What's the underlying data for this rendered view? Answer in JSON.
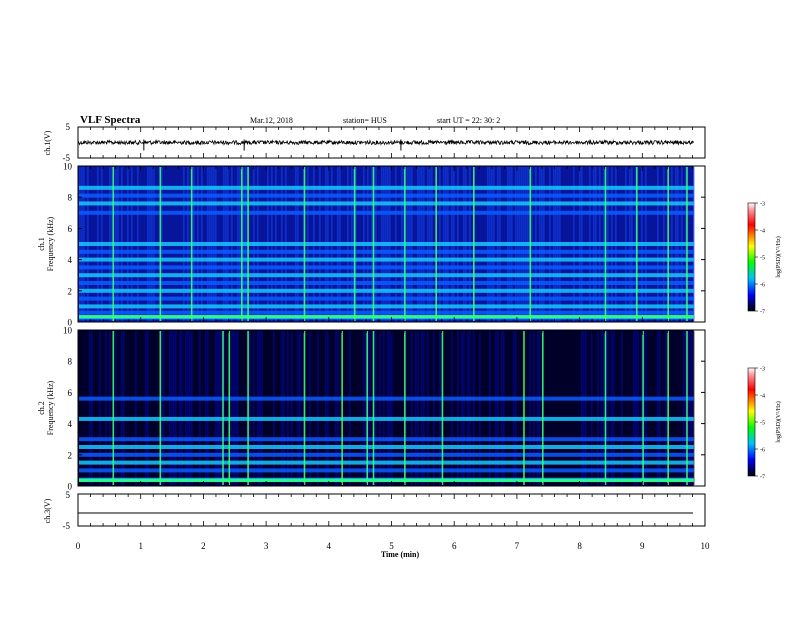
{
  "header": {
    "title": "VLF Spectra",
    "date": "Mar.12, 2018",
    "station": "station= HUS",
    "start": "start  UT =   22: 30: 2"
  },
  "colorbar": {
    "label": "log(PSD)(V²/Hz)",
    "ticks": [
      "-3",
      "-4",
      "-5",
      "-6",
      "-7"
    ],
    "colors": [
      "#ff0000",
      "#ffff00",
      "#00ff00",
      "#00c0ff",
      "#0000ff",
      "#000000"
    ]
  },
  "chart_data": [
    {
      "type": "line",
      "ylabel": "ch.1(V)",
      "ylim": [
        -5,
        5
      ],
      "yticks": [
        "5",
        "-5"
      ],
      "description_values": {
        "baseline": 0,
        "spike_times_min": [
          1.05,
          2.65,
          5.15
        ]
      }
    },
    {
      "type": "heatmap",
      "ylabel": "ch.1\nFrequency (kHz)",
      "ylabel_lines": [
        "ch.1",
        "Frequency (kHz)"
      ],
      "xlim": [
        0,
        10
      ],
      "ylim": [
        0,
        10
      ],
      "yticks": [
        "0",
        "2",
        "4",
        "6",
        "8",
        "10"
      ],
      "bands_khz": [
        0.3,
        0.6,
        1.0,
        1.5,
        2.0,
        2.5,
        3.0,
        3.5,
        4.0,
        4.5,
        5.0,
        7.0,
        7.6,
        8.1,
        8.6
      ],
      "spike_times_min": [
        0.55,
        1.3,
        1.8,
        2.6,
        2.7,
        3.6,
        4.4,
        4.7,
        5.2,
        5.7,
        6.3,
        7.2,
        8.4,
        8.9,
        9.4,
        9.7
      ],
      "zlim": [
        -7,
        -3
      ]
    },
    {
      "type": "heatmap",
      "ylabel_lines": [
        "ch.2",
        "Frequency (kHz)"
      ],
      "xlim": [
        0,
        10
      ],
      "ylim": [
        0,
        10
      ],
      "yticks": [
        "0",
        "2",
        "4",
        "6",
        "8",
        "10"
      ],
      "bands_khz": [
        0.4,
        1.0,
        1.5,
        2.0,
        2.5,
        3.0,
        4.3,
        5.6
      ],
      "spike_times_min": [
        0.55,
        1.3,
        2.3,
        2.4,
        2.7,
        3.6,
        4.2,
        4.6,
        4.7,
        5.2,
        5.8,
        7.1,
        7.4,
        8.4,
        9.0,
        9.4,
        9.7
      ],
      "zlim": [
        -7,
        -3
      ]
    },
    {
      "type": "line",
      "ylabel": "ch.3(V)",
      "ylim": [
        -5,
        5
      ],
      "yticks": [
        "5",
        "-5"
      ],
      "xlabel": "Time  (min)",
      "xlim": [
        0,
        10
      ],
      "xticks": [
        "0",
        "1",
        "2",
        "3",
        "4",
        "5",
        "6",
        "7",
        "8",
        "9",
        "10"
      ],
      "values_flat": 0
    }
  ]
}
